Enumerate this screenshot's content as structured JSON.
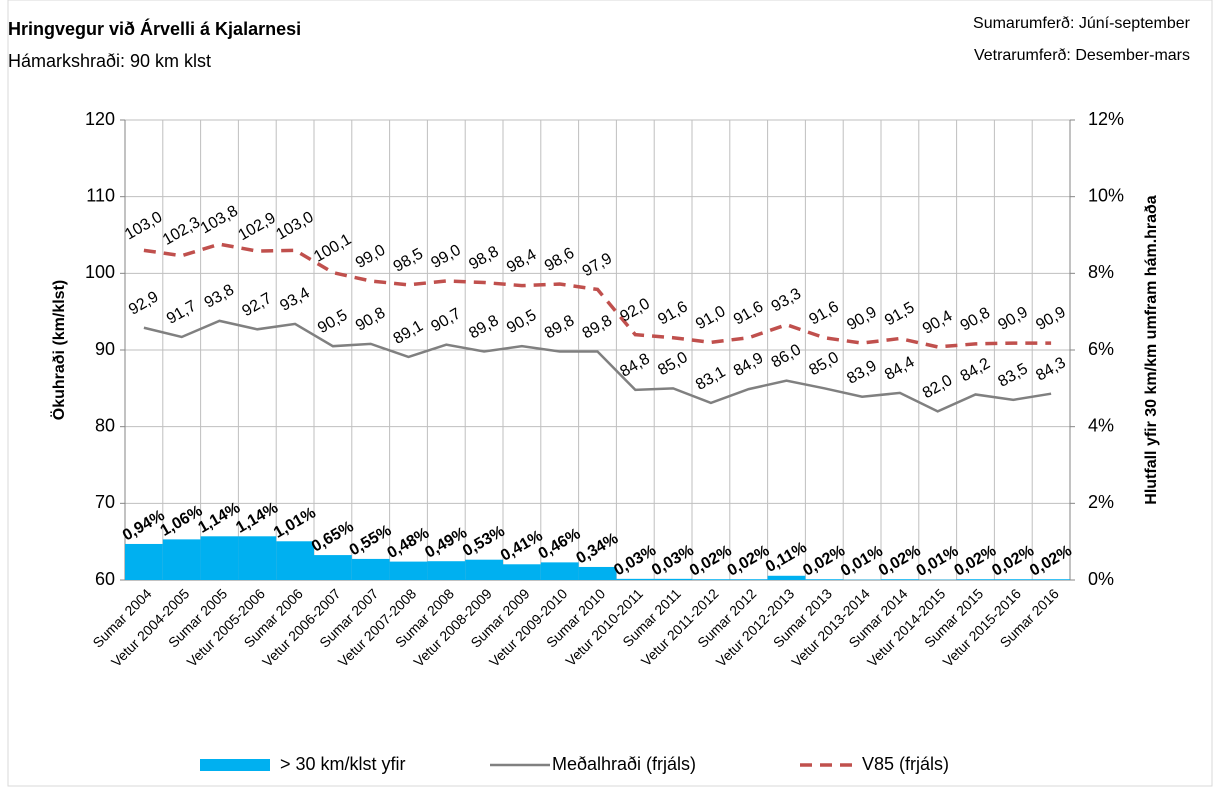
{
  "chart_data": {
    "type": "combo",
    "title": "Hringvegur við Árvelli á Kjalarnesi",
    "subtitle": "Hámarkshraði: 90 km klst",
    "notes": [
      "Sumarumferð:  Júní-september",
      "Vetrarumferð:  Desember-mars"
    ],
    "y_label": "Ökuhraði (km/klst)",
    "y2_label": "Hlutfall yfir 30 km/km umfram hám.hraða",
    "categories": [
      "Sumar 2004",
      "Vetur 2004-2005",
      "Sumar 2005",
      "Vetur 2005-2006",
      "Sumar 2006",
      "Vetur 2006-2007",
      "Sumar 2007",
      "Vetur 2007-2008",
      "Sumar 2008",
      "Vetur 2008-2009",
      "Sumar 2009",
      "Vetur 2009-2010",
      "Sumar 2010",
      "Vetur 2010-2011",
      "Sumar 2011",
      "Vetur 2011-2012",
      "Sumar 2012",
      "Vetur 2012-2013",
      "Sumar 2013",
      "Vetur 2013-2014",
      "Sumar 2014",
      "Vetur 2014-2015",
      "Sumar 2015",
      "Vetur 2015-2016",
      "Sumar 2016"
    ],
    "ylim": [
      60,
      120
    ],
    "yticks": [
      60,
      70,
      80,
      90,
      100,
      110,
      120
    ],
    "y2lim": [
      0,
      12
    ],
    "y2ticks": [
      {
        "value": 0,
        "label": "0%"
      },
      {
        "value": 2,
        "label": "2%"
      },
      {
        "value": 4,
        "label": "4%"
      },
      {
        "value": 6,
        "label": "6%"
      },
      {
        "value": 8,
        "label": "8%"
      },
      {
        "value": 10,
        "label": "10%"
      },
      {
        "value": 12,
        "label": "12%"
      }
    ],
    "grid": true,
    "legend": "bottom",
    "series": [
      {
        "name": "> 30 km/klst yfir",
        "type": "bar",
        "axis": "y2",
        "color": "#00b0f0",
        "values": [
          0.94,
          1.06,
          1.14,
          1.14,
          1.01,
          0.65,
          0.55,
          0.48,
          0.49,
          0.53,
          0.41,
          0.46,
          0.34,
          0.03,
          0.03,
          0.02,
          0.02,
          0.11,
          0.02,
          0.01,
          0.02,
          0.01,
          0.02,
          0.02,
          0.02
        ],
        "value_labels": [
          "0,94%",
          "1,06%",
          "1,14%",
          "1,14%",
          "1,01%",
          "0,65%",
          "0,55%",
          "0,48%",
          "0,49%",
          "0,53%",
          "0,41%",
          "0,46%",
          "0,34%",
          "0,03%",
          "0,03%",
          "0,02%",
          "0,02%",
          "0,11%",
          "0,02%",
          "0,01%",
          "0,02%",
          "0,01%",
          "0,02%",
          "0,02%",
          "0,02%"
        ]
      },
      {
        "name": "Meðalhraði (frjáls)",
        "type": "line",
        "color": "#808080",
        "dashed": false,
        "values": [
          92.9,
          91.7,
          93.8,
          92.7,
          93.4,
          90.5,
          90.8,
          89.1,
          90.7,
          89.8,
          90.5,
          89.8,
          89.8,
          84.8,
          85.0,
          83.1,
          84.9,
          86.0,
          85.0,
          83.9,
          84.4,
          82.0,
          84.2,
          83.5,
          84.3
        ],
        "value_labels": [
          "92,9",
          "91,7",
          "93,8",
          "92,7",
          "93,4",
          "90,5",
          "90,8",
          "89,1",
          "90,7",
          "89,8",
          "90,5",
          "89,8",
          "89,8",
          "84,8",
          "85,0",
          "83,1",
          "84,9",
          "86,0",
          "85,0",
          "83,9",
          "84,4",
          "82,0",
          "84,2",
          "83,5",
          "84,3"
        ]
      },
      {
        "name": "V85 (frjáls)",
        "type": "line",
        "color": "#c0504d",
        "dashed": true,
        "values": [
          103.0,
          102.3,
          103.8,
          102.9,
          103.0,
          100.1,
          99.0,
          98.5,
          99.0,
          98.8,
          98.4,
          98.6,
          97.9,
          92.0,
          91.6,
          91.0,
          91.6,
          93.3,
          91.6,
          90.9,
          91.5,
          90.4,
          90.8,
          90.9,
          90.9
        ],
        "value_labels": [
          "103,0",
          "102,3",
          "103,8",
          "102,9",
          "103,0",
          "100,1",
          "99,0",
          "98,5",
          "99,0",
          "98,8",
          "98,4",
          "98,6",
          "97,9",
          "92,0",
          "91,6",
          "91,0",
          "91,6",
          "93,3",
          "91,6",
          "90,9",
          "91,5",
          "90,4",
          "90,8",
          "90,9",
          "90,9"
        ]
      }
    ]
  }
}
